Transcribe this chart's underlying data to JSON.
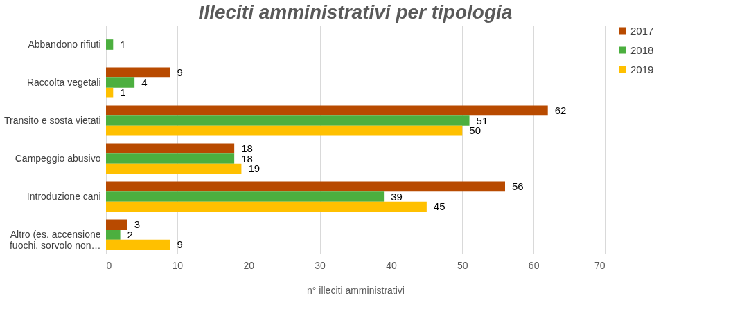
{
  "chart_data": {
    "type": "bar",
    "orientation": "horizontal",
    "title": "Illeciti amministrativi per tipologia",
    "xlabel": "n° illeciti amministrativi",
    "categories": [
      "Abbandono rifiuti",
      "Raccolta vegetali",
      "Transito e sosta vietati",
      "Campeggio abusivo",
      "Introduzione cani",
      "Altro (es. accensione fuochi, sorvolo non…"
    ],
    "series": [
      {
        "name": "2017",
        "color": "#b84a00",
        "values": [
          null,
          9,
          62,
          18,
          56,
          3
        ]
      },
      {
        "name": "2018",
        "color": "#4caf3f",
        "values": [
          1,
          4,
          51,
          18,
          39,
          2
        ]
      },
      {
        "name": "2019",
        "color": "#ffc000",
        "values": [
          null,
          1,
          50,
          19,
          45,
          9
        ]
      }
    ],
    "xlim": [
      0,
      70
    ],
    "xticks": [
      0,
      10,
      20,
      30,
      40,
      50,
      60,
      70
    ],
    "grid": "x",
    "legend": "right",
    "data_labels": true
  }
}
